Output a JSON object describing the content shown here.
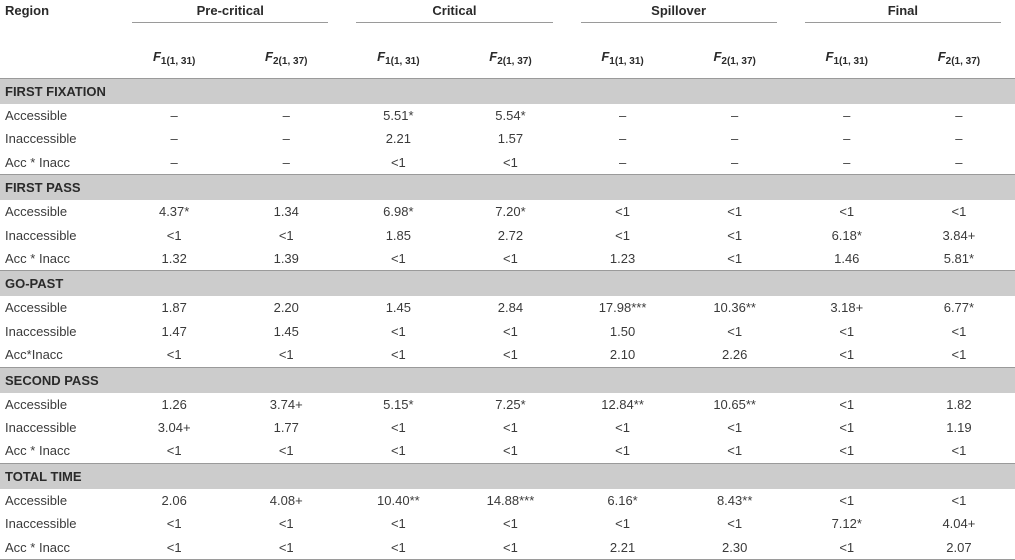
{
  "header": {
    "region_label": "Region",
    "groups": [
      "Pre-critical",
      "Critical",
      "Spillover",
      "Final"
    ],
    "stat1_main": "F",
    "stat1_sub": "1(1, 31)",
    "stat2_main": "F",
    "stat2_sub": "2(1, 37)"
  },
  "sections": [
    {
      "title": "FIRST FIXATION",
      "rows": [
        {
          "label": "Accessible",
          "values": [
            "–",
            "–",
            "5.51*",
            "5.54*",
            "–",
            "–",
            "–",
            "–"
          ]
        },
        {
          "label": "Inaccessible",
          "values": [
            "–",
            "–",
            "2.21",
            "1.57",
            "–",
            "–",
            "–",
            "–"
          ]
        },
        {
          "label": "Acc * Inacc",
          "values": [
            "–",
            "–",
            "<1",
            "<1",
            "–",
            "–",
            "–",
            "–"
          ]
        }
      ]
    },
    {
      "title": "FIRST PASS",
      "rows": [
        {
          "label": "Accessible",
          "values": [
            "4.37*",
            "1.34",
            "6.98*",
            "7.20*",
            "<1",
            "<1",
            "<1",
            "<1"
          ]
        },
        {
          "label": "Inaccessible",
          "values": [
            "<1",
            "<1",
            "1.85",
            "2.72",
            "<1",
            "<1",
            "6.18*",
            "3.84+"
          ]
        },
        {
          "label": "Acc * Inacc",
          "values": [
            "1.32",
            "1.39",
            "<1",
            "<1",
            "1.23",
            "<1",
            "1.46",
            "5.81*"
          ]
        }
      ]
    },
    {
      "title": "GO-PAST",
      "rows": [
        {
          "label": "Accessible",
          "values": [
            "1.87",
            "2.20",
            "1.45",
            "2.84",
            "17.98***",
            "10.36**",
            "3.18+",
            "6.77*"
          ]
        },
        {
          "label": "Inaccessible",
          "values": [
            "1.47",
            "1.45",
            "<1",
            "<1",
            "1.50",
            "<1",
            "<1",
            "<1"
          ]
        },
        {
          "label": "Acc*Inacc",
          "values": [
            "<1",
            "<1",
            "<1",
            "<1",
            "2.10",
            "2.26",
            "<1",
            "<1"
          ]
        }
      ]
    },
    {
      "title": "SECOND PASS",
      "rows": [
        {
          "label": "Accessible",
          "values": [
            "1.26",
            "3.74+",
            "5.15*",
            "7.25*",
            "12.84**",
            "10.65**",
            "<1",
            "1.82"
          ]
        },
        {
          "label": "Inaccessible",
          "values": [
            "3.04+",
            "1.77",
            "<1",
            "<1",
            "<1",
            "<1",
            "<1",
            "1.19"
          ]
        },
        {
          "label": "Acc * Inacc",
          "values": [
            "<1",
            "<1",
            "<1",
            "<1",
            "<1",
            "<1",
            "<1",
            "<1"
          ]
        }
      ]
    },
    {
      "title": "TOTAL TIME",
      "rows": [
        {
          "label": "Accessible",
          "values": [
            "2.06",
            "4.08+",
            "10.40**",
            "14.88***",
            "6.16*",
            "8.43**",
            "<1",
            "<1"
          ]
        },
        {
          "label": "Inaccessible",
          "values": [
            "<1",
            "<1",
            "<1",
            "<1",
            "<1",
            "<1",
            "7.12*",
            "4.04+"
          ]
        },
        {
          "label": "Acc * Inacc",
          "values": [
            "<1",
            "<1",
            "<1",
            "<1",
            "2.21",
            "2.30",
            "<1",
            "2.07"
          ]
        }
      ]
    }
  ]
}
